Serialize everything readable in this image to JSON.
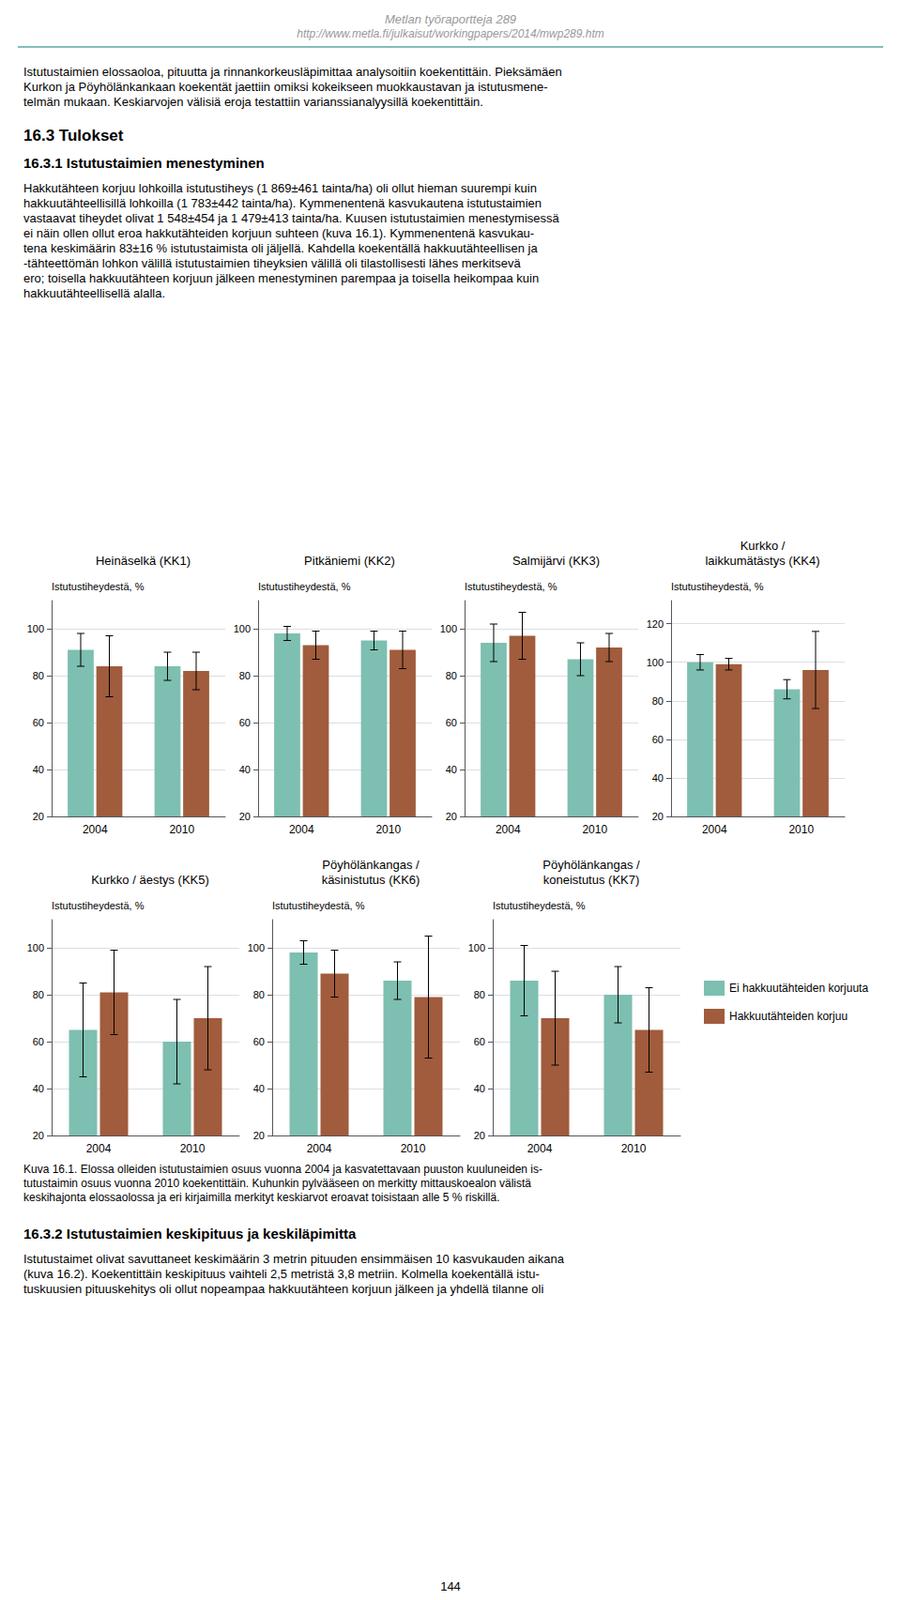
{
  "page_title": "Metlan työraportteja 289",
  "page_url": "http://www.metla.fi/julkaisut/workingpapers/2014/mwp289.htm",
  "body_text_1": [
    "Istutustaimien elossaoloa, pituutta ja rinnankorkeusläpimittaa analysoitiin koekentittäin. Pieksämäen",
    "Kurkon ja Pöyhölänkankaan koekentät jaettiin omiksi kokeikseen muokkaustavan ja istutusmene-",
    "telmän mukaan. Keskiarvojen välisiä eroja testattiin varianssianalyysillä koekentittäin."
  ],
  "section_title": "16.3 Tulokset",
  "subsection_title": "16.3.1 Istutustaimien menestyminen",
  "body_text_2": [
    "Hakkutähteen korjuu lohkoilla istutustiheys (1 869±461 tainta/ha) oli ollut hieman suurempi kuin",
    "hakkuutähteellisillä lohkoilla (1 783±442 tainta/ha). Kymmenentenä kasvukautena istutustaimien",
    "vastaavat tiheydet olivat 1 548±454 ja 1 479±413 tainta/ha. Kuusen istutustaimien menestymisessä",
    "ei näin ollen ollut eroa hakkutähteiden korjuun suhteen (kuva 16.1). Kymmenentenä kasvukau-",
    "tena keskimäärin 83±16 % istutustaimista oli jäljellä. Kahdella koekentällä hakkuutähteellisen ja",
    "-tähteettömän lohkon välillä istutustaimien tiheyksien välillä oli tilastollisesti lähes merkitsevä",
    "ero; toisella hakkuutähteen korjuun jälkeen menestyminen parempaa ja toisella heikompaa kuin",
    "hakkuutähteellisellä alalla."
  ],
  "caption": [
    "Kuva 16.1. Elossa olleiden istutustaimien osuus vuonna 2004 ja kasvatettavaan puuston kuuluneiden is-",
    "tutustaimin osuus vuonna 2010 koekentittäin. Kuhunkin pylvääseen on merkitty mittauskoealon välistä",
    "keskihajonta elossaolossa ja eri kirjaimilla merkityt keskiarvot eroavat toisistaan alle 5 % riskillä."
  ],
  "section2_title": "16.3.2 Istutustaimien keskipituus ja keskiläpimitta",
  "body_text_3": [
    "Istutustaimet olivat savuttaneet keskimäärin 3 metrin pituuden ensimmäisen 10 kasvukauden aikana",
    "(kuva 16.2). Koekentittäin keskipituus vaihteli 2,5 metristä 3,8 metriin. Kolmella koekentällä istu-",
    "tuskuusien pituuskehitys oli ollut nopeampaa hakkuutähteen korjuun jälkeen ja yhdellä tilanne oli"
  ],
  "footer": "144",
  "chart_data": [
    {
      "type": "bar",
      "title": "Heinäselkä (KK1)",
      "ylabel": "Istutustiheydestä, %",
      "categories": [
        "2004",
        "2010"
      ],
      "series": [
        {
          "name": "Ei hakkuutähteiden korjuuta",
          "color": "#7dbfb0",
          "values": [
            91,
            84
          ],
          "errors": [
            7,
            6
          ]
        },
        {
          "name": "Hakkuutähteiden korjuu",
          "color": "#a05c3c",
          "values": [
            84,
            82
          ],
          "errors": [
            13,
            8
          ]
        }
      ],
      "ylim": [
        20,
        112
      ],
      "yticks": [
        20,
        40,
        60,
        80,
        100
      ],
      "grid": true
    },
    {
      "type": "bar",
      "title": "Pitkäniemi (KK2)",
      "ylabel": "Istutustiheydestä, %",
      "categories": [
        "2004",
        "2010"
      ],
      "series": [
        {
          "name": "Ei hakkuutähteiden korjuuta",
          "color": "#7dbfb0",
          "values": [
            98,
            95
          ],
          "errors": [
            3,
            4
          ]
        },
        {
          "name": "Hakkuutähteiden korjuu",
          "color": "#a05c3c",
          "values": [
            93,
            91
          ],
          "errors": [
            6,
            8
          ]
        }
      ],
      "ylim": [
        20,
        112
      ],
      "yticks": [
        20,
        40,
        60,
        80,
        100
      ],
      "grid": true
    },
    {
      "type": "bar",
      "title": "Salmijärvi (KK3)",
      "ylabel": "Istutustiheydestä, %",
      "categories": [
        "2004",
        "2010"
      ],
      "series": [
        {
          "name": "Ei hakkuutähteiden korjuuta",
          "color": "#7dbfb0",
          "values": [
            94,
            87
          ],
          "errors": [
            8,
            7
          ]
        },
        {
          "name": "Hakkuutähteiden korjuu",
          "color": "#a05c3c",
          "values": [
            97,
            92
          ],
          "errors": [
            10,
            6
          ]
        }
      ],
      "ylim": [
        20,
        112
      ],
      "yticks": [
        20,
        40,
        60,
        80,
        100
      ],
      "grid": true
    },
    {
      "type": "bar",
      "title": "Kurkko /\nlaikkumätästys (KK4)",
      "ylabel": "Istutustiheydestä, %",
      "categories": [
        "2004",
        "2010"
      ],
      "series": [
        {
          "name": "Ei hakkuutähteiden korjuuta",
          "color": "#7dbfb0",
          "values": [
            100,
            86
          ],
          "errors": [
            4,
            5
          ]
        },
        {
          "name": "Hakkuutähteiden korjuu",
          "color": "#a05c3c",
          "values": [
            99,
            96
          ],
          "errors": [
            3,
            20
          ]
        }
      ],
      "ylim": [
        20,
        132
      ],
      "yticks": [
        20,
        40,
        60,
        80,
        100,
        120
      ],
      "grid": true
    },
    {
      "type": "bar",
      "title": "Kurkko / äestys (KK5)",
      "ylabel": "Istutustiheydestä, %",
      "categories": [
        "2004",
        "2010"
      ],
      "series": [
        {
          "name": "Ei hakkuutähteiden korjuuta",
          "color": "#7dbfb0",
          "values": [
            65,
            60
          ],
          "errors": [
            20,
            18
          ]
        },
        {
          "name": "Hakkuutähteiden korjuu",
          "color": "#a05c3c",
          "values": [
            81,
            70
          ],
          "errors": [
            18,
            22
          ]
        }
      ],
      "ylim": [
        20,
        112
      ],
      "yticks": [
        20,
        40,
        60,
        80,
        100
      ],
      "grid": true
    },
    {
      "type": "bar",
      "title": "Pöyhölänkangas /\nkäsinistutus (KK6)",
      "ylabel": "Istutustiheydestä, %",
      "categories": [
        "2004",
        "2010"
      ],
      "series": [
        {
          "name": "Ei hakkuutähteiden korjuuta",
          "color": "#7dbfb0",
          "values": [
            98,
            86
          ],
          "errors": [
            5,
            8
          ]
        },
        {
          "name": "Hakkuutähteiden korjuu",
          "color": "#a05c3c",
          "values": [
            89,
            79
          ],
          "errors": [
            10,
            26
          ]
        }
      ],
      "ylim": [
        20,
        112
      ],
      "yticks": [
        20,
        40,
        60,
        80,
        100
      ],
      "grid": true
    },
    {
      "type": "bar",
      "title": "Pöyhölänkangas /\nkoneistutus (KK7)",
      "ylabel": "Istutustiheydestä, %",
      "categories": [
        "2004",
        "2010"
      ],
      "series": [
        {
          "name": "Ei hakkuutähteiden korjuuta",
          "color": "#7dbfb0",
          "values": [
            86,
            80
          ],
          "errors": [
            15,
            12
          ]
        },
        {
          "name": "Hakkuutähteiden korjuu",
          "color": "#a05c3c",
          "values": [
            70,
            65
          ],
          "errors": [
            20,
            18
          ]
        }
      ],
      "ylim": [
        20,
        112
      ],
      "yticks": [
        20,
        40,
        60,
        80,
        100
      ],
      "grid": true,
      "legend": "right"
    }
  ]
}
